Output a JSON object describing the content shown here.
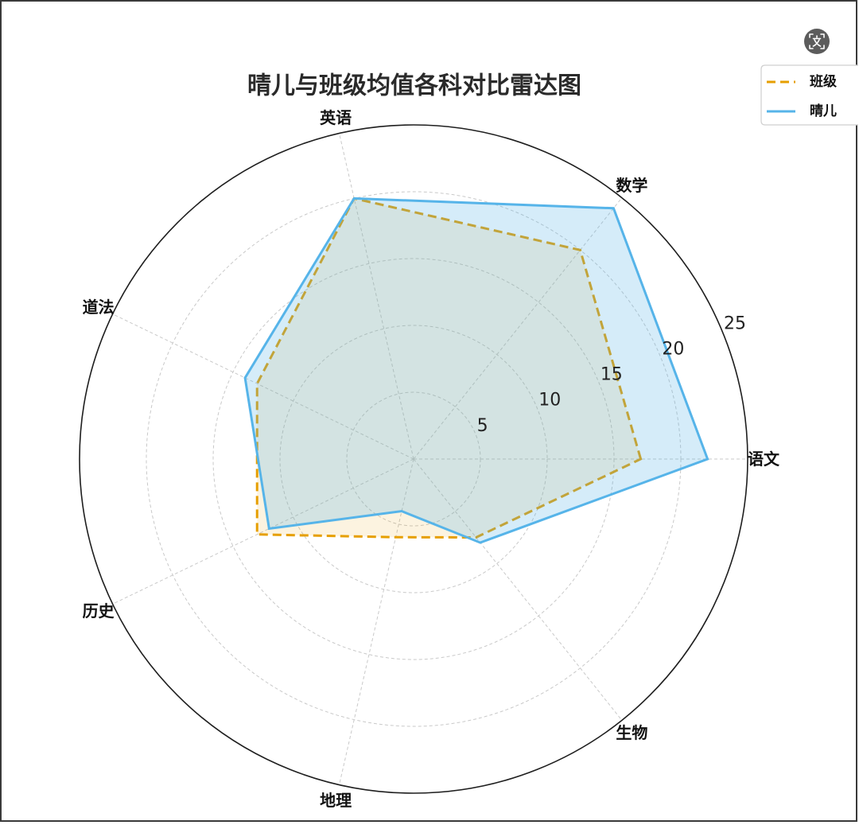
{
  "overlay": {
    "translate_button_icon": "translate-icon"
  },
  "chart_data": {
    "type": "radar",
    "title": "晴儿与班级均值各科对比雷达图",
    "categories": [
      "语文",
      "数学",
      "英语",
      "道法",
      "历史",
      "地理",
      "生物"
    ],
    "series": [
      {
        "name": "班级",
        "values": [
          17,
          20,
          20,
          13,
          13,
          6,
          7.5
        ],
        "color": "#E69F00",
        "dashed": true
      },
      {
        "name": "晴儿",
        "values": [
          22,
          24,
          20,
          14,
          12,
          4,
          8
        ],
        "color": "#56B4E9",
        "dashed": false
      }
    ],
    "rlim": [
      0,
      25
    ],
    "rticks": [
      5,
      10,
      15,
      20,
      25
    ],
    "grid": true,
    "legend": "top-right"
  }
}
